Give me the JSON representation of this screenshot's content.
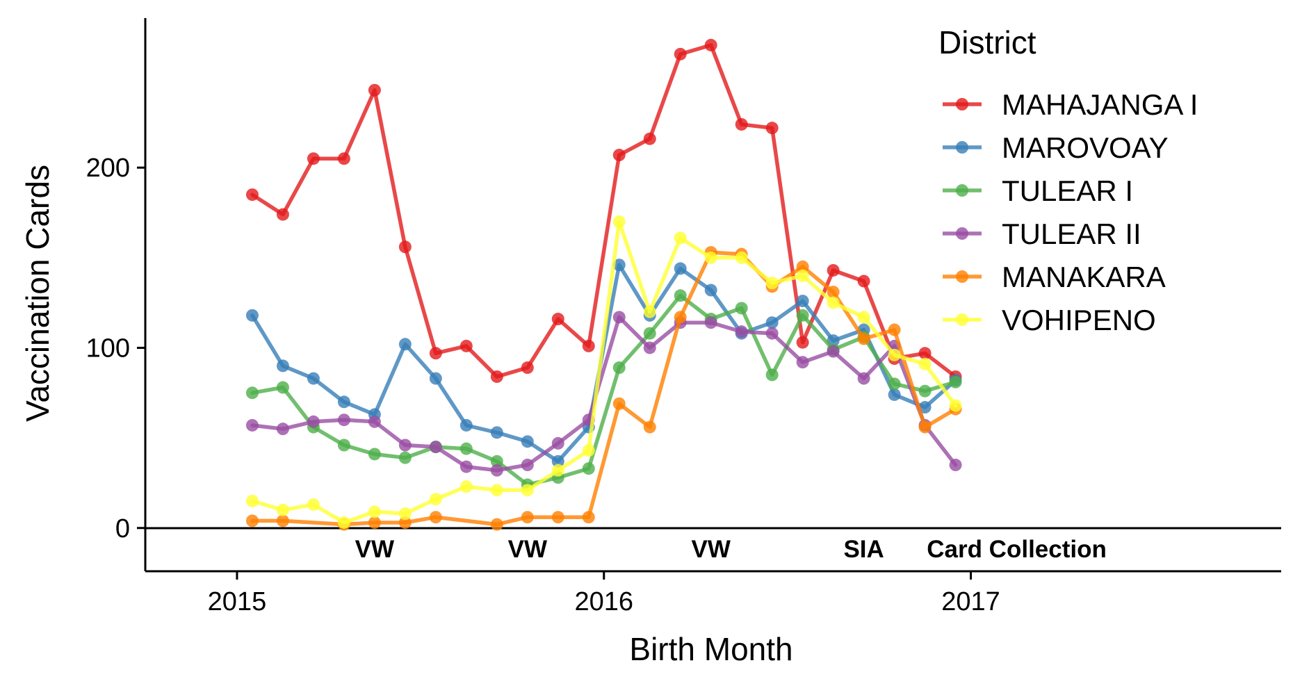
{
  "chart_data": {
    "type": "line",
    "x": [
      "2015-01",
      "2015-02",
      "2015-03",
      "2015-04",
      "2015-05",
      "2015-06",
      "2015-07",
      "2015-08",
      "2015-09",
      "2015-10",
      "2015-11",
      "2015-12",
      "2016-01",
      "2016-02",
      "2016-03",
      "2016-04",
      "2016-05",
      "2016-06",
      "2016-07",
      "2016-08",
      "2016-09",
      "2016-10",
      "2016-11",
      "2016-12"
    ],
    "series": [
      {
        "name": "MAHAJANGA I",
        "color": "#e41a1c",
        "values": [
          185,
          174,
          205,
          205,
          243,
          156,
          97,
          101,
          84,
          89,
          116,
          101,
          207,
          216,
          263,
          268,
          224,
          222,
          103,
          143,
          137,
          94,
          97,
          84
        ]
      },
      {
        "name": "MAROVOAY",
        "color": "#377eb8",
        "values": [
          118,
          90,
          83,
          70,
          63,
          102,
          83,
          57,
          53,
          48,
          37,
          56,
          146,
          118,
          144,
          132,
          108,
          114,
          126,
          104,
          110,
          74,
          67,
          82
        ]
      },
      {
        "name": "TULEAR I",
        "color": "#4daf4a",
        "values": [
          75,
          78,
          56,
          46,
          41,
          39,
          45,
          44,
          37,
          24,
          28,
          33,
          89,
          108,
          129,
          116,
          122,
          85,
          118,
          99,
          106,
          80,
          76,
          81
        ]
      },
      {
        "name": "TULEAR II",
        "color": "#984ea3",
        "values": [
          57,
          55,
          59,
          60,
          59,
          46,
          45,
          34,
          32,
          35,
          47,
          60,
          117,
          100,
          114,
          114,
          109,
          108,
          92,
          98,
          83,
          101,
          57,
          35
        ]
      },
      {
        "name": "MANAKARA",
        "color": "#ff7f00",
        "values": [
          4,
          4,
          null,
          2,
          3,
          3,
          6,
          null,
          2,
          6,
          6,
          6,
          69,
          56,
          117,
          153,
          152,
          134,
          145,
          131,
          105,
          110,
          56,
          66
        ]
      },
      {
        "name": "VOHIPENO",
        "color": "#ffff33",
        "values": [
          15,
          10,
          13,
          3,
          9,
          8,
          16,
          23,
          21,
          21,
          32,
          43,
          170,
          120,
          161,
          150,
          150,
          136,
          140,
          125,
          117,
          96,
          91,
          68
        ]
      }
    ],
    "xlabel": "Birth Month",
    "ylabel": "Vaccination Cards",
    "xlim": [
      "2014-10",
      "2017-10"
    ],
    "ylim": [
      -24,
      283
    ],
    "x_ticks": [
      "2015",
      "2016",
      "2017"
    ],
    "y_ticks": [
      0,
      100,
      200
    ],
    "grid": false,
    "legend": {
      "title": "District",
      "position": "top-right"
    },
    "annotations": [
      {
        "text": "VW",
        "x": "2015-05"
      },
      {
        "text": "VW",
        "x": "2015-10"
      },
      {
        "text": "VW",
        "x": "2016-04"
      },
      {
        "text": "SIA",
        "x": "2016-09"
      },
      {
        "text": "Card Collection",
        "x": "2017-02"
      }
    ]
  }
}
